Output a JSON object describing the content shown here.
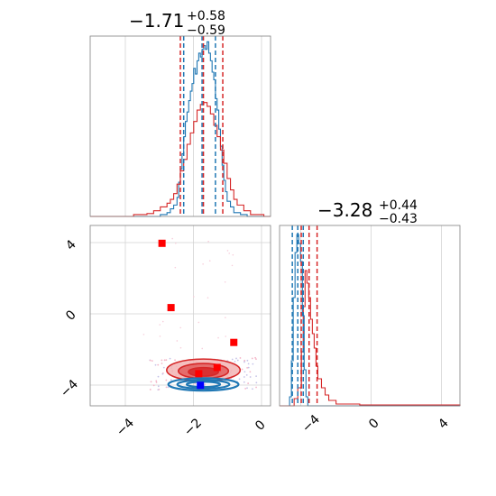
{
  "colors": {
    "red": "#d62728",
    "blue": "#1f77b4",
    "red_fill_outer": "#f2b4b4",
    "red_fill_inner": "#e05d5d",
    "frame": "#808080",
    "grid": "#d3d3d3"
  },
  "chart_data": {
    "type": "corner",
    "panels": [
      {
        "id": "hist_x",
        "type": "histogram",
        "title": {
          "value": "−1.71",
          "sup": "+0.58",
          "sub": "−0.59"
        },
        "xlim": [
          -5.1,
          0.3
        ],
        "xticks": [
          -4,
          -2,
          0
        ],
        "grid": true,
        "series": [
          {
            "color": "#1f77b4",
            "bins": [
              [
                -5.1,
                0
              ],
              [
                -3.3,
                0
              ],
              [
                -3.0,
                0.01
              ],
              [
                -2.8,
                0.02
              ],
              [
                -2.7,
                0.04
              ],
              [
                -2.6,
                0.06
              ],
              [
                -2.5,
                0.1
              ],
              [
                -2.45,
                0.18
              ],
              [
                -2.4,
                0.25
              ],
              [
                -2.35,
                0.33
              ],
              [
                -2.3,
                0.42
              ],
              [
                -2.25,
                0.5
              ],
              [
                -2.2,
                0.55
              ],
              [
                -2.15,
                0.61
              ],
              [
                -2.1,
                0.66
              ],
              [
                -2.05,
                0.7
              ],
              [
                -2.0,
                0.78
              ],
              [
                -1.95,
                0.75
              ],
              [
                -1.9,
                0.82
              ],
              [
                -1.85,
                0.86
              ],
              [
                -1.8,
                0.84
              ],
              [
                -1.75,
                0.88
              ],
              [
                -1.7,
                0.9
              ],
              [
                -1.65,
                0.88
              ],
              [
                -1.6,
                0.92
              ],
              [
                -1.55,
                0.86
              ],
              [
                -1.5,
                0.82
              ],
              [
                -1.45,
                0.76
              ],
              [
                -1.4,
                0.72
              ],
              [
                -1.35,
                0.62
              ],
              [
                -1.3,
                0.56
              ],
              [
                -1.25,
                0.46
              ],
              [
                -1.2,
                0.37
              ],
              [
                -1.15,
                0.27
              ],
              [
                -1.1,
                0.19
              ],
              [
                -1.05,
                0.13
              ],
              [
                -1.0,
                0.08
              ],
              [
                -0.9,
                0.05
              ],
              [
                -0.8,
                0.02
              ],
              [
                -0.6,
                0.01
              ],
              [
                -0.4,
                0
              ],
              [
                0.3,
                0
              ]
            ],
            "quantiles": [
              -2.3,
              -1.75,
              -1.35
            ]
          },
          {
            "color": "#d62728",
            "bins": [
              [
                -5.1,
                0
              ],
              [
                -4.0,
                0
              ],
              [
                -3.8,
                0.01
              ],
              [
                -3.4,
                0.015
              ],
              [
                -3.2,
                0.03
              ],
              [
                -3.0,
                0.05
              ],
              [
                -2.8,
                0.07
              ],
              [
                -2.7,
                0.09
              ],
              [
                -2.6,
                0.12
              ],
              [
                -2.5,
                0.17
              ],
              [
                -2.4,
                0.24
              ],
              [
                -2.3,
                0.3
              ],
              [
                -2.2,
                0.38
              ],
              [
                -2.1,
                0.44
              ],
              [
                -2.0,
                0.5
              ],
              [
                -1.9,
                0.56
              ],
              [
                -1.8,
                0.59
              ],
              [
                -1.7,
                0.6
              ],
              [
                -1.6,
                0.58
              ],
              [
                -1.5,
                0.54
              ],
              [
                -1.4,
                0.48
              ],
              [
                -1.3,
                0.42
              ],
              [
                -1.2,
                0.35
              ],
              [
                -1.1,
                0.28
              ],
              [
                -1.0,
                0.2
              ],
              [
                -0.9,
                0.14
              ],
              [
                -0.8,
                0.09
              ],
              [
                -0.7,
                0.06
              ],
              [
                -0.5,
                0.03
              ],
              [
                -0.3,
                0.01
              ],
              [
                0.1,
                0
              ],
              [
                0.3,
                0
              ]
            ],
            "quantiles": [
              -2.4,
              -1.71,
              -1.13
            ]
          }
        ]
      },
      {
        "id": "hist_y",
        "type": "histogram",
        "title": {
          "value": "−3.28",
          "sup": "+0.44",
          "sub": "−0.43"
        },
        "xlim": [
          -4.9,
          5.0
        ],
        "xticks": [
          -4,
          0,
          4
        ],
        "grid": true,
        "series": [
          {
            "color": "#1f77b4",
            "bins": [
              [
                -4.9,
                0
              ],
              [
                -4.45,
                0
              ],
              [
                -4.35,
                0.05
              ],
              [
                -4.25,
                0.25
              ],
              [
                -4.15,
                0.6
              ],
              [
                -4.05,
                0.85
              ],
              [
                -3.95,
                0.95
              ],
              [
                -3.85,
                0.9
              ],
              [
                -3.75,
                0.8
              ],
              [
                -3.65,
                0.5
              ],
              [
                -3.55,
                0.2
              ],
              [
                -3.45,
                0.05
              ],
              [
                -3.35,
                0
              ],
              [
                5.0,
                0
              ]
            ],
            "quantiles": [
              -4.2,
              -3.9,
              -3.6
            ]
          },
          {
            "color": "#d62728",
            "bins": [
              [
                -4.9,
                0
              ],
              [
                -4.3,
                0
              ],
              [
                -4.1,
                0.04
              ],
              [
                -3.9,
                0.1
              ],
              [
                -3.7,
                0.3
              ],
              [
                -3.6,
                0.55
              ],
              [
                -3.5,
                0.75
              ],
              [
                -3.4,
                0.68
              ],
              [
                -3.3,
                0.6
              ],
              [
                -3.2,
                0.48
              ],
              [
                -3.1,
                0.4
              ],
              [
                -3.0,
                0.32
              ],
              [
                -2.9,
                0.22
              ],
              [
                -2.8,
                0.15
              ],
              [
                -2.6,
                0.1
              ],
              [
                -2.4,
                0.06
              ],
              [
                -2.2,
                0.03
              ],
              [
                -1.8,
                0.01
              ],
              [
                -0.5,
                0.005
              ],
              [
                2.0,
                0.005
              ],
              [
                4.0,
                0.005
              ],
              [
                5.0,
                0
              ]
            ],
            "quantiles": [
              -3.71,
              -3.28,
              -2.84
            ]
          }
        ]
      },
      {
        "id": "scatter_xy",
        "type": "contour_scatter",
        "xlim": [
          -5.1,
          0.3
        ],
        "ylim": [
          -5.1,
          5.0
        ],
        "xticks": [
          -4,
          -2,
          0
        ],
        "yticks": [
          -4,
          0,
          4
        ],
        "grid": true,
        "red_contours": [
          {
            "cx": -1.71,
            "cy": -3.1,
            "rx": 1.1,
            "ry": 0.62,
            "fill": "#f2b4b4"
          },
          {
            "cx": -1.71,
            "cy": -3.15,
            "rx": 0.75,
            "ry": 0.42,
            "fill": "#e05d5d"
          },
          {
            "cx": -1.71,
            "cy": -3.2,
            "rx": 0.45,
            "ry": 0.24,
            "fill": "#d62728"
          }
        ],
        "blue_contours": [
          {
            "cx": -1.71,
            "cy": -3.9,
            "rx": 1.05,
            "ry": 0.35
          },
          {
            "cx": -1.71,
            "cy": -3.9,
            "rx": 0.78,
            "ry": 0.24
          },
          {
            "cx": -1.71,
            "cy": -3.9,
            "rx": 0.5,
            "ry": 0.15
          }
        ],
        "red_markers": [
          [
            -2.95,
            4.0
          ],
          [
            -2.68,
            0.4
          ],
          [
            -0.8,
            -1.55
          ],
          [
            -1.3,
            -2.95
          ],
          [
            -1.85,
            -3.3
          ]
        ],
        "blue_markers": [
          [
            -1.8,
            -3.95
          ]
        ]
      }
    ]
  }
}
